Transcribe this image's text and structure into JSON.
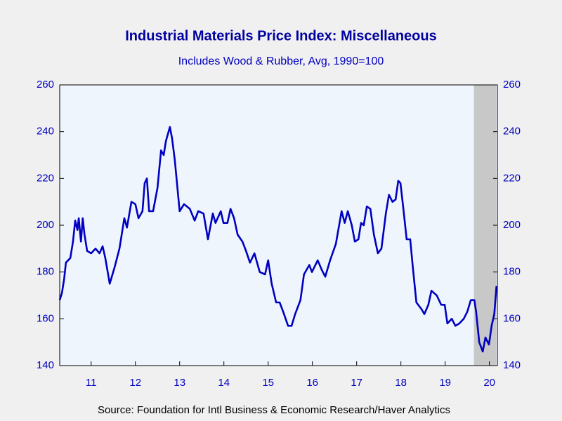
{
  "chart_data": {
    "type": "line",
    "title": "Industrial Materials Price Index: Miscellaneous",
    "subtitle": "Includes Wood & Rubber, Avg, 1990=100",
    "source": "Source:  Foundation for Intl Business & Economic Research/Haver Analytics",
    "x": [
      2010.79,
      2010.84,
      2010.89,
      2010.93,
      2011.03,
      2011.09,
      2011.14,
      2011.19,
      2011.22,
      2011.27,
      2011.31,
      2011.35,
      2011.41,
      2011.5,
      2011.6,
      2011.69,
      2011.76,
      2011.82,
      2011.92,
      2012.03,
      2012.14,
      2012.25,
      2012.31,
      2012.41,
      2012.5,
      2012.57,
      2012.66,
      2012.71,
      2012.76,
      2012.81,
      2012.9,
      2013.0,
      2013.08,
      2013.14,
      2013.19,
      2013.28,
      2013.33,
      2013.39,
      2013.5,
      2013.6,
      2013.73,
      2013.84,
      2013.92,
      2014.04,
      2014.14,
      2014.25,
      2014.31,
      2014.43,
      2014.49,
      2014.58,
      2014.65,
      2014.73,
      2014.81,
      2014.92,
      2015.0,
      2015.09,
      2015.19,
      2015.31,
      2015.43,
      2015.5,
      2015.58,
      2015.68,
      2015.76,
      2015.84,
      2015.95,
      2016.03,
      2016.11,
      2016.23,
      2016.31,
      2016.43,
      2016.49,
      2016.62,
      2016.71,
      2016.79,
      2016.9,
      2017.03,
      2017.16,
      2017.23,
      2017.3,
      2017.39,
      2017.46,
      2017.54,
      2017.6,
      2017.66,
      2017.73,
      2017.81,
      2017.89,
      2017.98,
      2018.06,
      2018.16,
      2018.23,
      2018.31,
      2018.38,
      2018.44,
      2018.49,
      2018.55,
      2018.63,
      2018.71,
      2018.77,
      2018.85,
      2018.97,
      2019.03,
      2019.12,
      2019.19,
      2019.31,
      2019.41,
      2019.49,
      2019.55,
      2019.65,
      2019.73,
      2019.82,
      2019.92,
      2020.0,
      2020.08,
      2020.16,
      2020.2,
      2020.27,
      2020.35,
      2020.41,
      2020.49,
      2020.55,
      2020.61,
      2020.66
    ],
    "series": [
      {
        "name": "Miscellaneous",
        "color": "#0000c0",
        "values": [
          168,
          171,
          177,
          184,
          186,
          193,
          202,
          198,
          203,
          193,
          203,
          196,
          189,
          188,
          190,
          188,
          191,
          186,
          175,
          182,
          190,
          203,
          199,
          210,
          209,
          203,
          206,
          218,
          220,
          206,
          206,
          216,
          232,
          230,
          236,
          242,
          237,
          228,
          206,
          209,
          207,
          202,
          206,
          205,
          194,
          205,
          201,
          206,
          201,
          201,
          207,
          203,
          196,
          193,
          189,
          184,
          188,
          180,
          179,
          185,
          175,
          167,
          167,
          163,
          157,
          157,
          162,
          168,
          179,
          183,
          180,
          185,
          181,
          178,
          185,
          192,
          206,
          201,
          206,
          200,
          193,
          194,
          201,
          200,
          208,
          207,
          196,
          188,
          190,
          205,
          213,
          210,
          211,
          219,
          218,
          208,
          194,
          194,
          182,
          167,
          164,
          162,
          166,
          172,
          170,
          166,
          166,
          158,
          160,
          157,
          158,
          160,
          163,
          168,
          168,
          163,
          150,
          146,
          152,
          149,
          157,
          162,
          174
        ]
      }
    ],
    "xlim": [
      2010.79,
      2020.68
    ],
    "xticks": [
      {
        "value": 2011.5,
        "label": "11"
      },
      {
        "value": 2012.5,
        "label": "12"
      },
      {
        "value": 2013.5,
        "label": "13"
      },
      {
        "value": 2014.5,
        "label": "14"
      },
      {
        "value": 2015.5,
        "label": "15"
      },
      {
        "value": 2016.5,
        "label": "16"
      },
      {
        "value": 2017.5,
        "label": "17"
      },
      {
        "value": 2018.5,
        "label": "18"
      },
      {
        "value": 2019.5,
        "label": "19"
      },
      {
        "value": 2020.5,
        "label": "20"
      }
    ],
    "ylim": [
      140,
      260
    ],
    "yticks": [
      140,
      160,
      180,
      200,
      220,
      240,
      260
    ],
    "y2lim": [
      140,
      260
    ],
    "y2ticks": [
      140,
      160,
      180,
      200,
      220,
      240,
      260
    ],
    "shaded_range": [
      2020.15,
      2020.65
    ],
    "shade_color": "#c8c8c8"
  }
}
